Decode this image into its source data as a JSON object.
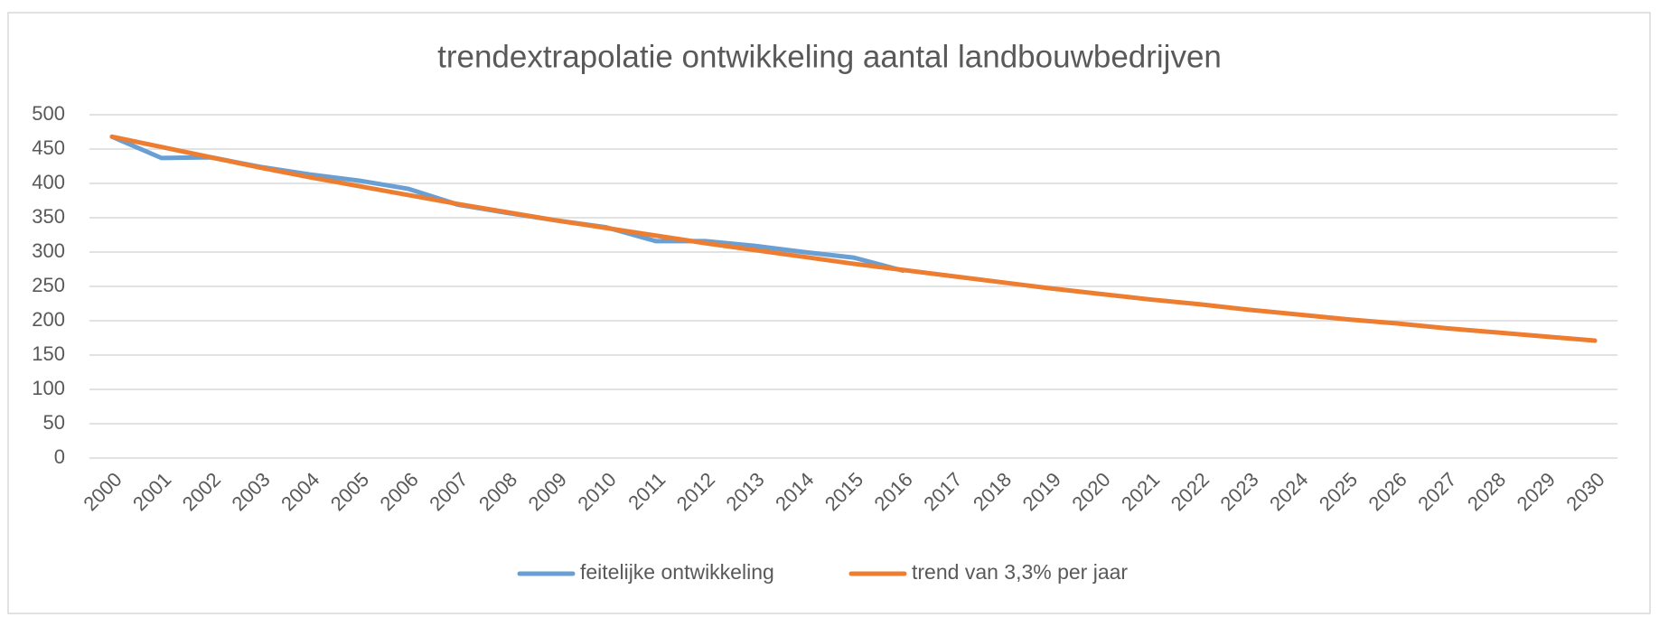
{
  "chart_data": {
    "type": "line",
    "title": "trendextrapolatie ontwikkeling  aantal landbouwbedrijven",
    "categories": [
      "2000",
      "2001",
      "2002",
      "2003",
      "2004",
      "2005",
      "2006",
      "2007",
      "2008",
      "2009",
      "2010",
      "2011",
      "2012",
      "2013",
      "2014",
      "2015",
      "2016",
      "2017",
      "2018",
      "2019",
      "2020",
      "2021",
      "2022",
      "2023",
      "2024",
      "2025",
      "2026",
      "2027",
      "2028",
      "2029",
      "2030"
    ],
    "series": [
      {
        "name": "feitelijke ontwikkeling",
        "color": "#6a9fd4",
        "values": [
          468,
          437,
          438,
          424,
          413,
          404,
          392,
          369,
          357,
          346,
          336,
          316,
          316,
          309,
          300,
          292,
          273,
          null,
          null,
          null,
          null,
          null,
          null,
          null,
          null,
          null,
          null,
          null,
          null,
          null,
          null
        ]
      },
      {
        "name": "trend van 3,3% per jaar",
        "color": "#ed7d31",
        "values": [
          468,
          453,
          438,
          423,
          409,
          396,
          383,
          370,
          358,
          346,
          335,
          324,
          313,
          303,
          293,
          283,
          274,
          265,
          256,
          247,
          239,
          231,
          224,
          216,
          209,
          202,
          196,
          189,
          183,
          177,
          171
        ]
      }
    ],
    "ylim": [
      0,
      500
    ],
    "yticks": [
      0,
      50,
      100,
      150,
      200,
      250,
      300,
      350,
      400,
      450,
      500
    ],
    "grid": true,
    "legend": "bottom"
  }
}
